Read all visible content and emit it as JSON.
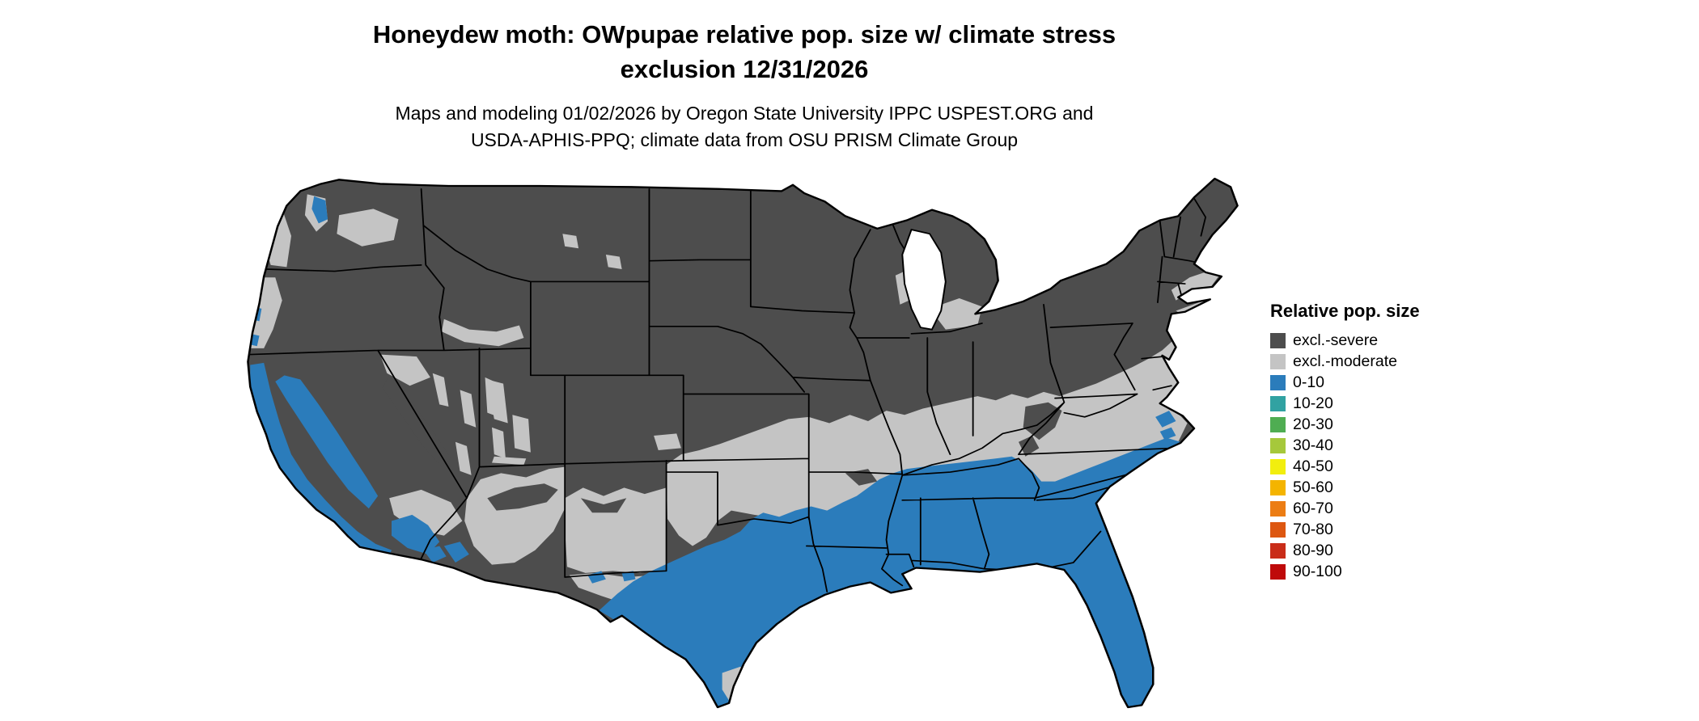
{
  "header": {
    "title_line1": "Honeydew moth: OWpupae relative pop. size w/ climate stress",
    "title_line2": "exclusion 12/31/2026",
    "subtitle_line1": "Maps and modeling 01/02/2026 by Oregon State University IPPC USPEST.ORG and",
    "subtitle_line2": "USDA-APHIS-PPQ; climate data from OSU PRISM Climate Group"
  },
  "legend": {
    "title": "Relative pop. size",
    "items": [
      {
        "key": "severe",
        "label": "excl.-severe",
        "color": "#4d4d4d"
      },
      {
        "key": "moderate",
        "label": "excl.-moderate",
        "color": "#c4c4c4"
      },
      {
        "key": "b010",
        "label": "0-10",
        "color": "#2b7cbb"
      },
      {
        "key": "b1020",
        "label": "10-20",
        "color": "#31a2a2"
      },
      {
        "key": "b2030",
        "label": "20-30",
        "color": "#4fad52"
      },
      {
        "key": "b3040",
        "label": "30-40",
        "color": "#a6c83b"
      },
      {
        "key": "b4050",
        "label": "40-50",
        "color": "#f2ee0e"
      },
      {
        "key": "b5060",
        "label": "50-60",
        "color": "#f4b400"
      },
      {
        "key": "b6070",
        "label": "60-70",
        "color": "#ec7d14"
      },
      {
        "key": "b7080",
        "label": "70-80",
        "color": "#dd5711"
      },
      {
        "key": "b8090",
        "label": "80-90",
        "color": "#c92d19"
      },
      {
        "key": "b90100",
        "label": "90-100",
        "color": "#bf0a0a"
      }
    ]
  },
  "map": {
    "region": "Continental United States",
    "zones_visible": [
      "excl.-severe",
      "excl.-moderate",
      "0-10"
    ],
    "background": "#ffffff",
    "border_color": "#000000"
  }
}
